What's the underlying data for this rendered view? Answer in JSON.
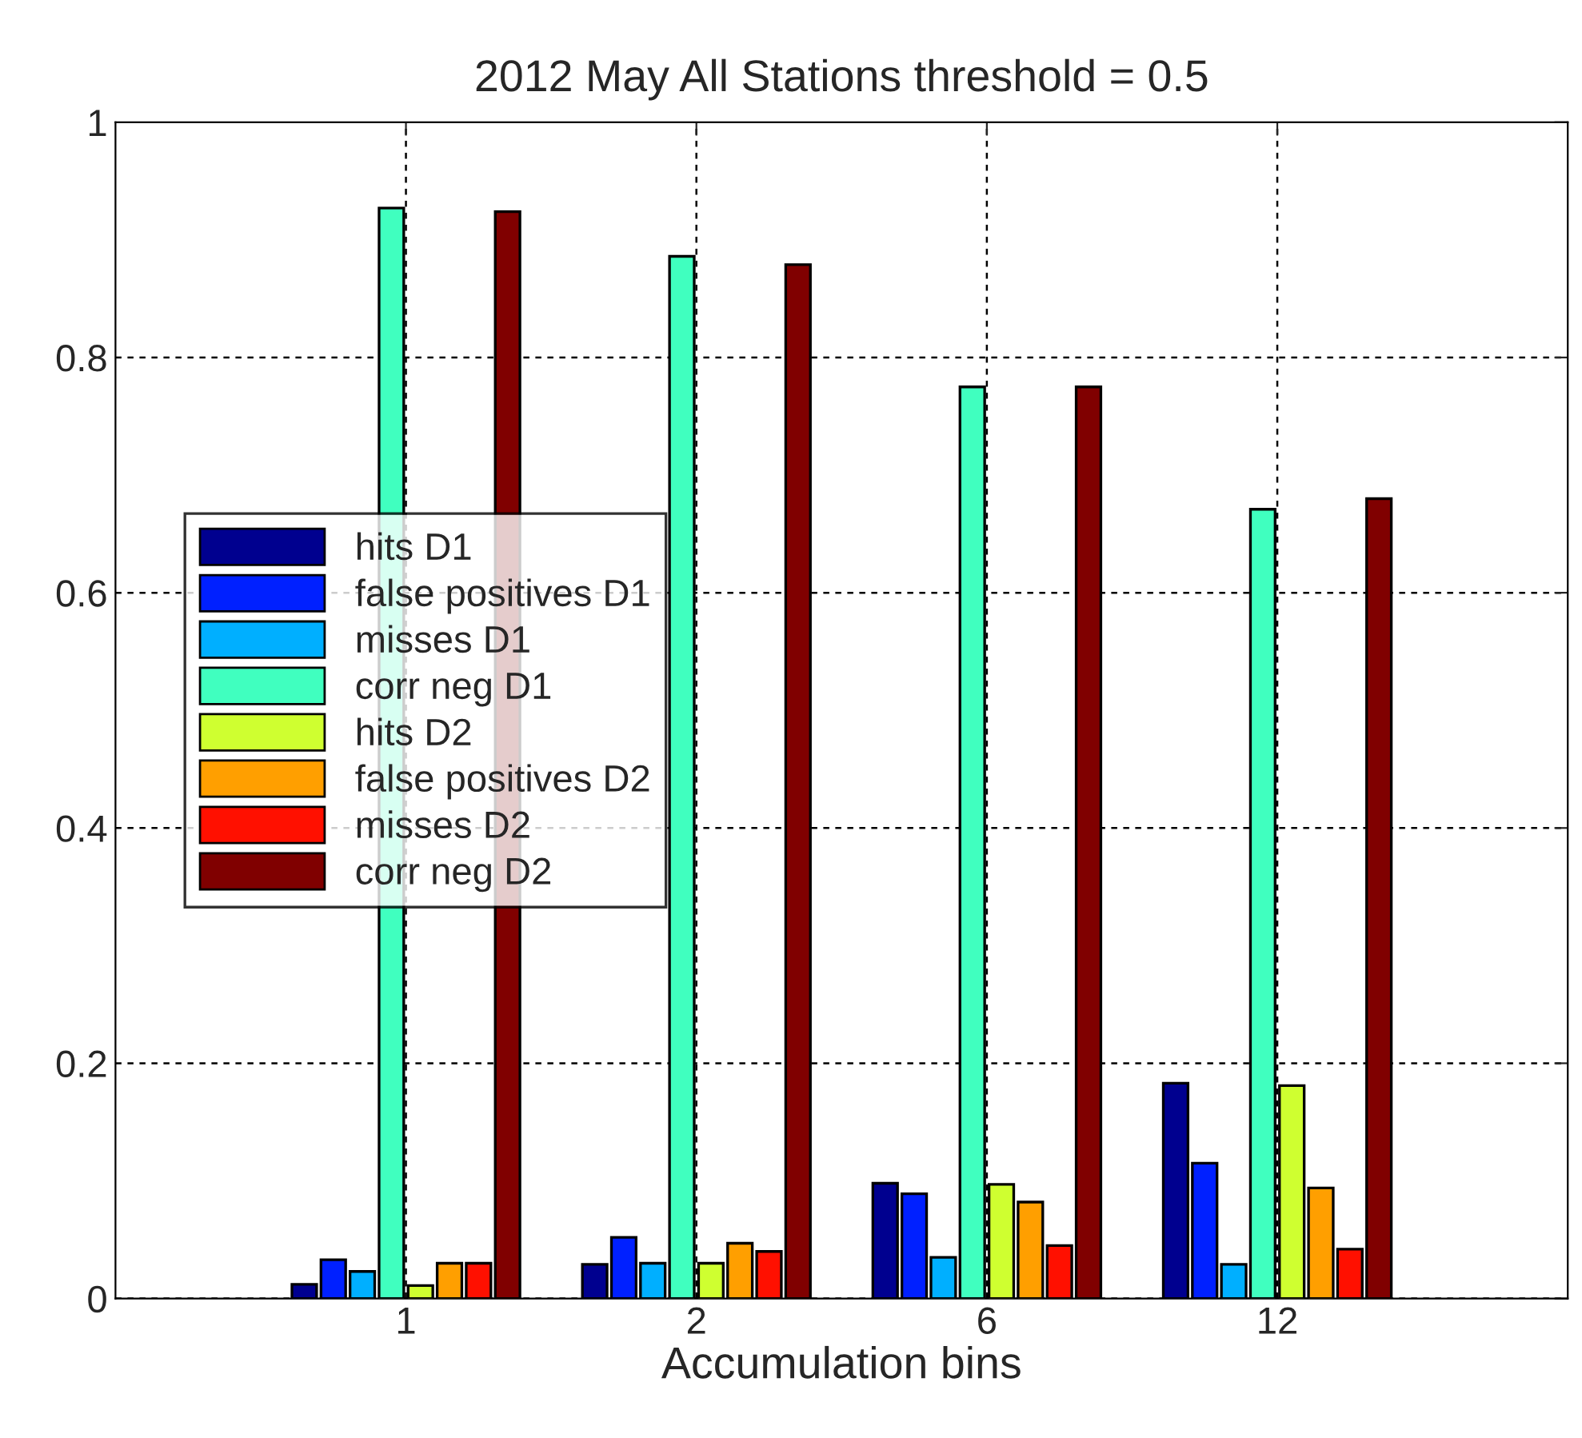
{
  "chart_data": {
    "type": "bar",
    "title": "2012 May All Stations threshold = 0.5",
    "xlabel": "Accumulation bins",
    "categories": [
      "1",
      "2",
      "6",
      "12"
    ],
    "series": [
      {
        "name": "hits D1",
        "color": "#00008f",
        "values": [
          0.012,
          0.029,
          0.098,
          0.183
        ]
      },
      {
        "name": "false positives D1",
        "color": "#0020ff",
        "values": [
          0.033,
          0.052,
          0.089,
          0.115
        ]
      },
      {
        "name": "misses D1",
        "color": "#00afff",
        "values": [
          0.023,
          0.03,
          0.035,
          0.029
        ]
      },
      {
        "name": "corr neg D1",
        "color": "#40ffbf",
        "values": [
          0.927,
          0.886,
          0.775,
          0.671
        ]
      },
      {
        "name": "hits D2",
        "color": "#cfff30",
        "values": [
          0.011,
          0.03,
          0.097,
          0.181
        ]
      },
      {
        "name": "false positives D2",
        "color": "#ff9f00",
        "values": [
          0.03,
          0.047,
          0.082,
          0.094
        ]
      },
      {
        "name": "misses D2",
        "color": "#ff1000",
        "values": [
          0.03,
          0.04,
          0.045,
          0.042
        ]
      },
      {
        "name": "corr neg D2",
        "color": "#800000",
        "values": [
          0.924,
          0.879,
          0.775,
          0.68
        ]
      }
    ],
    "ylim": [
      0,
      1
    ],
    "yticks": [
      0,
      0.2,
      0.4,
      0.6,
      0.8,
      1
    ],
    "grid": true,
    "legend": "left"
  }
}
